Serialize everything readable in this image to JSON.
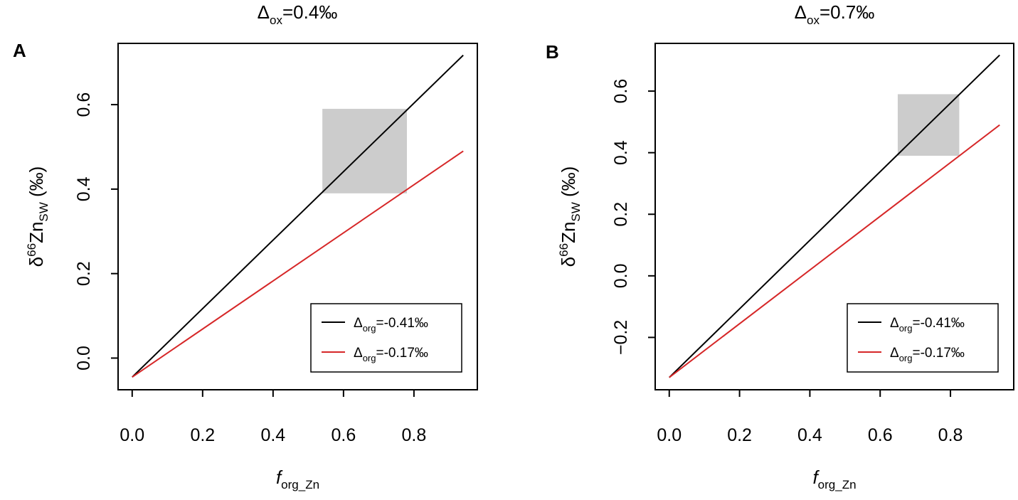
{
  "chart_data": [
    {
      "type": "line",
      "panel_label": "A",
      "title": {
        "symbol": "Δ",
        "subscript": "ox",
        "value": "=0.4‰"
      },
      "xlabel": {
        "main": "f",
        "subscript": "org_Zn"
      },
      "ylabel": {
        "prefix": "δ",
        "superscript": "66",
        "element": "Zn",
        "subscript": "SW",
        "unit": " (‰)"
      },
      "xlim": [
        -0.04,
        0.98
      ],
      "ylim": [
        -0.075,
        0.745
      ],
      "xticks": [
        0.0,
        0.2,
        0.4,
        0.6,
        0.8
      ],
      "xtick_labels": [
        "0.0",
        "0.2",
        "0.4",
        "0.6",
        "0.8"
      ],
      "yticks": [
        0.0,
        0.2,
        0.4,
        0.6
      ],
      "ytick_labels": [
        "0.0",
        "0.2",
        "0.4",
        "0.6"
      ],
      "shaded_region": {
        "x": [
          0.54,
          0.78
        ],
        "y": [
          0.39,
          0.59
        ],
        "color": "#cccccc"
      },
      "legend_position": "bottom-right",
      "series": [
        {
          "name_symbol": "Δ",
          "name_subscript": "org",
          "name_value": "=-0.41‰",
          "color": "#000000",
          "x": [
            0.0,
            0.94
          ],
          "y": [
            -0.045,
            0.717
          ]
        },
        {
          "name_symbol": "Δ",
          "name_subscript": "org",
          "name_value": "=-0.17‰",
          "color": "#d62728",
          "x": [
            0.0,
            0.94
          ],
          "y": [
            -0.045,
            0.49
          ]
        }
      ]
    },
    {
      "type": "line",
      "panel_label": "B",
      "title": {
        "symbol": "Δ",
        "subscript": "ox",
        "value": "=0.7‰"
      },
      "xlabel": {
        "main": "f",
        "subscript": "org_Zn"
      },
      "ylabel": {
        "prefix": "δ",
        "superscript": "66",
        "element": "Zn",
        "subscript": "SW",
        "unit": " (‰)"
      },
      "xlim": [
        -0.04,
        0.98
      ],
      "ylim": [
        -0.37,
        0.755
      ],
      "xticks": [
        0.0,
        0.2,
        0.4,
        0.6,
        0.8
      ],
      "xtick_labels": [
        "0.0",
        "0.2",
        "0.4",
        "0.6",
        "0.8"
      ],
      "yticks": [
        -0.2,
        0.0,
        0.2,
        0.4,
        0.6
      ],
      "ytick_labels": [
        "−0.2",
        "0.0",
        "0.2",
        "0.4",
        "0.6"
      ],
      "shaded_region": {
        "x": [
          0.65,
          0.825
        ],
        "y": [
          0.39,
          0.59
        ],
        "color": "#cccccc"
      },
      "legend_position": "bottom-right",
      "series": [
        {
          "name_symbol": "Δ",
          "name_subscript": "org",
          "name_value": "=-0.41‰",
          "color": "#000000",
          "x": [
            0.0,
            0.94
          ],
          "y": [
            -0.33,
            0.717
          ]
        },
        {
          "name_symbol": "Δ",
          "name_subscript": "org",
          "name_value": "=-0.17‰",
          "color": "#d62728",
          "x": [
            0.0,
            0.94
          ],
          "y": [
            -0.33,
            0.49
          ]
        }
      ]
    }
  ]
}
